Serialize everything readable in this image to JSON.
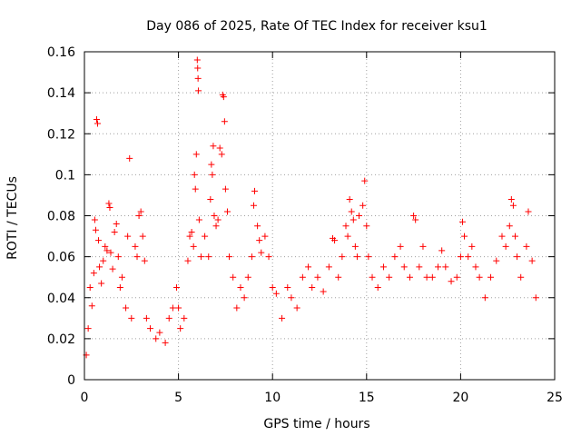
{
  "chart_data": {
    "type": "scatter",
    "title": "Day 086 of 2025, Rate Of TEC Index for receiver ksu1",
    "xlabel": "GPS time / hours",
    "ylabel": "ROTI / TECUs",
    "xlim": [
      0,
      25
    ],
    "ylim": [
      0,
      0.16
    ],
    "x_ticks": [
      0,
      5,
      10,
      15,
      20,
      25
    ],
    "x_tick_labels": [
      "0",
      "5",
      "10",
      "15",
      "20",
      "25"
    ],
    "y_ticks": [
      0,
      0.02,
      0.04,
      0.06,
      0.08,
      0.1,
      0.12,
      0.14,
      0.16
    ],
    "y_tick_labels": [
      "0",
      "0.02",
      "0.04",
      "0.06",
      "0.08",
      "0.1",
      "0.12",
      "0.14",
      "0.16"
    ],
    "grid": true,
    "marker": "plus",
    "series": [
      {
        "color": "#ff0000",
        "points": [
          [
            0.1,
            0.012
          ],
          [
            0.2,
            0.025
          ],
          [
            0.3,
            0.045
          ],
          [
            0.4,
            0.036
          ],
          [
            0.5,
            0.052
          ],
          [
            0.55,
            0.078
          ],
          [
            0.6,
            0.073
          ],
          [
            0.65,
            0.127
          ],
          [
            0.7,
            0.125
          ],
          [
            0.75,
            0.068
          ],
          [
            0.8,
            0.055
          ],
          [
            0.9,
            0.047
          ],
          [
            1.0,
            0.058
          ],
          [
            1.1,
            0.065
          ],
          [
            1.2,
            0.063
          ],
          [
            1.3,
            0.086
          ],
          [
            1.35,
            0.084
          ],
          [
            1.4,
            0.062
          ],
          [
            1.5,
            0.054
          ],
          [
            1.6,
            0.072
          ],
          [
            1.7,
            0.076
          ],
          [
            1.8,
            0.06
          ],
          [
            1.9,
            0.045
          ],
          [
            2.0,
            0.05
          ],
          [
            2.2,
            0.035
          ],
          [
            2.3,
            0.07
          ],
          [
            2.4,
            0.108
          ],
          [
            2.5,
            0.03
          ],
          [
            2.7,
            0.065
          ],
          [
            2.8,
            0.06
          ],
          [
            2.9,
            0.08
          ],
          [
            3.0,
            0.082
          ],
          [
            3.1,
            0.07
          ],
          [
            3.2,
            0.058
          ],
          [
            3.3,
            0.03
          ],
          [
            3.5,
            0.025
          ],
          [
            3.8,
            0.02
          ],
          [
            4.0,
            0.023
          ],
          [
            4.3,
            0.018
          ],
          [
            4.5,
            0.03
          ],
          [
            4.7,
            0.035
          ],
          [
            4.9,
            0.045
          ],
          [
            5.0,
            0.035
          ],
          [
            5.1,
            0.025
          ],
          [
            5.3,
            0.03
          ],
          [
            5.5,
            0.058
          ],
          [
            5.6,
            0.07
          ],
          [
            5.7,
            0.072
          ],
          [
            5.8,
            0.065
          ],
          [
            5.85,
            0.1
          ],
          [
            5.9,
            0.093
          ],
          [
            5.95,
            0.11
          ],
          [
            6.0,
            0.156
          ],
          [
            6.02,
            0.152
          ],
          [
            6.04,
            0.147
          ],
          [
            6.06,
            0.141
          ],
          [
            6.1,
            0.078
          ],
          [
            6.2,
            0.06
          ],
          [
            6.4,
            0.07
          ],
          [
            6.6,
            0.06
          ],
          [
            6.7,
            0.088
          ],
          [
            6.75,
            0.105
          ],
          [
            6.8,
            0.1
          ],
          [
            6.85,
            0.114
          ],
          [
            6.9,
            0.08
          ],
          [
            7.0,
            0.075
          ],
          [
            7.1,
            0.078
          ],
          [
            7.2,
            0.113
          ],
          [
            7.3,
            0.11
          ],
          [
            7.35,
            0.139
          ],
          [
            7.4,
            0.138
          ],
          [
            7.45,
            0.126
          ],
          [
            7.5,
            0.093
          ],
          [
            7.6,
            0.082
          ],
          [
            7.7,
            0.06
          ],
          [
            7.9,
            0.05
          ],
          [
            8.1,
            0.035
          ],
          [
            8.3,
            0.045
          ],
          [
            8.5,
            0.04
          ],
          [
            8.7,
            0.05
          ],
          [
            8.9,
            0.06
          ],
          [
            9.0,
            0.085
          ],
          [
            9.05,
            0.092
          ],
          [
            9.2,
            0.075
          ],
          [
            9.3,
            0.068
          ],
          [
            9.4,
            0.062
          ],
          [
            9.6,
            0.07
          ],
          [
            9.8,
            0.06
          ],
          [
            10.0,
            0.045
          ],
          [
            10.2,
            0.042
          ],
          [
            10.5,
            0.03
          ],
          [
            10.8,
            0.045
          ],
          [
            11.0,
            0.04
          ],
          [
            11.3,
            0.035
          ],
          [
            11.6,
            0.05
          ],
          [
            11.9,
            0.055
          ],
          [
            12.1,
            0.045
          ],
          [
            12.4,
            0.05
          ],
          [
            12.7,
            0.043
          ],
          [
            13.0,
            0.055
          ],
          [
            13.2,
            0.069
          ],
          [
            13.3,
            0.068
          ],
          [
            13.5,
            0.05
          ],
          [
            13.7,
            0.06
          ],
          [
            13.9,
            0.075
          ],
          [
            14.0,
            0.07
          ],
          [
            14.1,
            0.088
          ],
          [
            14.2,
            0.082
          ],
          [
            14.3,
            0.078
          ],
          [
            14.4,
            0.065
          ],
          [
            14.5,
            0.06
          ],
          [
            14.6,
            0.08
          ],
          [
            14.8,
            0.085
          ],
          [
            14.9,
            0.097
          ],
          [
            15.0,
            0.075
          ],
          [
            15.1,
            0.06
          ],
          [
            15.3,
            0.05
          ],
          [
            15.6,
            0.045
          ],
          [
            15.9,
            0.055
          ],
          [
            16.2,
            0.05
          ],
          [
            16.5,
            0.06
          ],
          [
            16.8,
            0.065
          ],
          [
            17.0,
            0.055
          ],
          [
            17.3,
            0.05
          ],
          [
            17.5,
            0.08
          ],
          [
            17.6,
            0.078
          ],
          [
            17.8,
            0.055
          ],
          [
            18.0,
            0.065
          ],
          [
            18.2,
            0.05
          ],
          [
            18.5,
            0.05
          ],
          [
            18.8,
            0.055
          ],
          [
            19.0,
            0.063
          ],
          [
            19.2,
            0.055
          ],
          [
            19.5,
            0.048
          ],
          [
            19.8,
            0.05
          ],
          [
            20.0,
            0.06
          ],
          [
            20.1,
            0.077
          ],
          [
            20.2,
            0.07
          ],
          [
            20.4,
            0.06
          ],
          [
            20.6,
            0.065
          ],
          [
            20.8,
            0.055
          ],
          [
            21.0,
            0.05
          ],
          [
            21.3,
            0.04
          ],
          [
            21.6,
            0.05
          ],
          [
            21.9,
            0.058
          ],
          [
            22.2,
            0.07
          ],
          [
            22.4,
            0.065
          ],
          [
            22.6,
            0.075
          ],
          [
            22.7,
            0.088
          ],
          [
            22.8,
            0.085
          ],
          [
            22.9,
            0.07
          ],
          [
            23.0,
            0.06
          ],
          [
            23.2,
            0.05
          ],
          [
            23.5,
            0.065
          ],
          [
            23.6,
            0.082
          ],
          [
            23.8,
            0.058
          ],
          [
            24.0,
            0.04
          ]
        ]
      }
    ]
  }
}
